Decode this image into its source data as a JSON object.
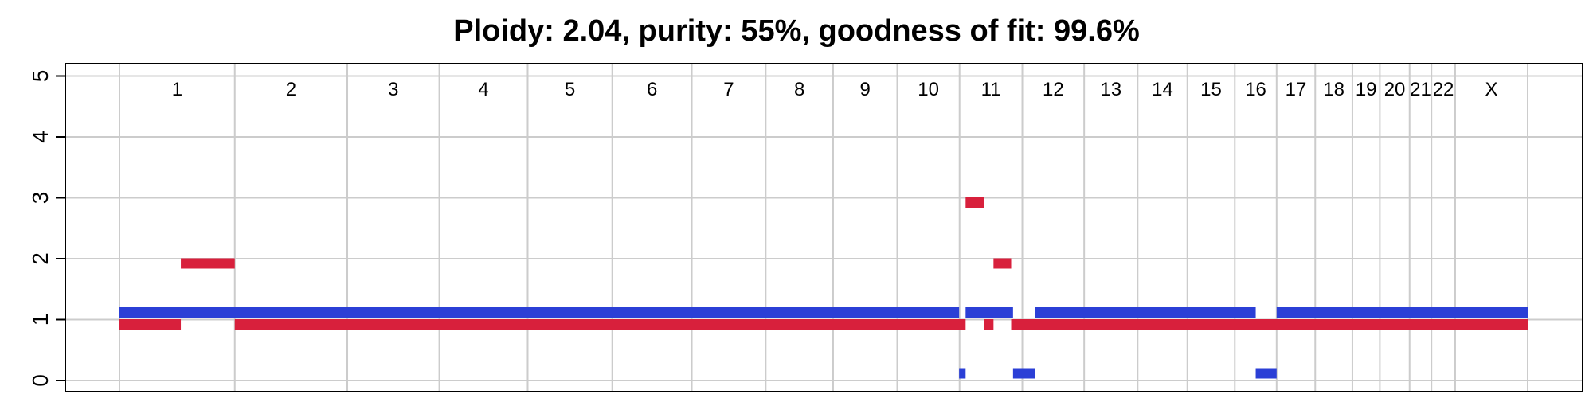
{
  "chart_data": {
    "type": "segment",
    "title": "Ploidy: 2.04, purity: 55%, goodness of fit: 99.6%",
    "xlabel": "",
    "ylabel": "",
    "ylim": [
      0,
      5
    ],
    "y_ticks": [
      "0",
      "1",
      "2",
      "3",
      "4",
      "5"
    ],
    "grid": true,
    "colors": {
      "major": "#2b3fd6",
      "minor": "#d8203c",
      "grid": "#cccccc",
      "axis": "#000000"
    },
    "chromosomes": [
      {
        "name": "1",
        "start": 0,
        "end": 248
      },
      {
        "name": "2",
        "start": 248,
        "end": 490
      },
      {
        "name": "3",
        "start": 490,
        "end": 688
      },
      {
        "name": "4",
        "start": 688,
        "end": 878
      },
      {
        "name": "5",
        "start": 878,
        "end": 1060
      },
      {
        "name": "6",
        "start": 1060,
        "end": 1231
      },
      {
        "name": "7",
        "start": 1231,
        "end": 1390
      },
      {
        "name": "8",
        "start": 1390,
        "end": 1535
      },
      {
        "name": "9",
        "start": 1535,
        "end": 1673
      },
      {
        "name": "10",
        "start": 1673,
        "end": 1807
      },
      {
        "name": "11",
        "start": 1807,
        "end": 1942
      },
      {
        "name": "12",
        "start": 1942,
        "end": 2075
      },
      {
        "name": "13",
        "start": 2075,
        "end": 2190
      },
      {
        "name": "14",
        "start": 2190,
        "end": 2297
      },
      {
        "name": "15",
        "start": 2297,
        "end": 2399
      },
      {
        "name": "16",
        "start": 2399,
        "end": 2489
      },
      {
        "name": "17",
        "start": 2489,
        "end": 2572
      },
      {
        "name": "18",
        "start": 2572,
        "end": 2652
      },
      {
        "name": "19",
        "start": 2652,
        "end": 2711
      },
      {
        "name": "20",
        "start": 2711,
        "end": 2775
      },
      {
        "name": "21",
        "start": 2775,
        "end": 2822
      },
      {
        "name": "22",
        "start": 2822,
        "end": 2873
      },
      {
        "name": "X",
        "start": 2873,
        "end": 3029
      }
    ],
    "series": [
      {
        "role": "major",
        "segments": [
          {
            "start": 0,
            "end": 1806,
            "cn": 1
          },
          {
            "start": 1806,
            "end": 1820,
            "cn": 0
          },
          {
            "start": 1820,
            "end": 1922,
            "cn": 1
          },
          {
            "start": 1922,
            "end": 1970,
            "cn": 0
          },
          {
            "start": 1970,
            "end": 2444,
            "cn": 1
          },
          {
            "start": 2444,
            "end": 2489,
            "cn": 0
          },
          {
            "start": 2489,
            "end": 3029,
            "cn": 1
          }
        ]
      },
      {
        "role": "minor",
        "segments": [
          {
            "start": 0,
            "end": 132,
            "cn": 1
          },
          {
            "start": 132,
            "end": 248,
            "cn": 2
          },
          {
            "start": 248,
            "end": 1820,
            "cn": 1
          },
          {
            "start": 1820,
            "end": 1860,
            "cn": 3
          },
          {
            "start": 1860,
            "end": 1880,
            "cn": 1
          },
          {
            "start": 1880,
            "end": 1918,
            "cn": 2
          },
          {
            "start": 1918,
            "end": 3029,
            "cn": 1
          }
        ]
      }
    ]
  }
}
